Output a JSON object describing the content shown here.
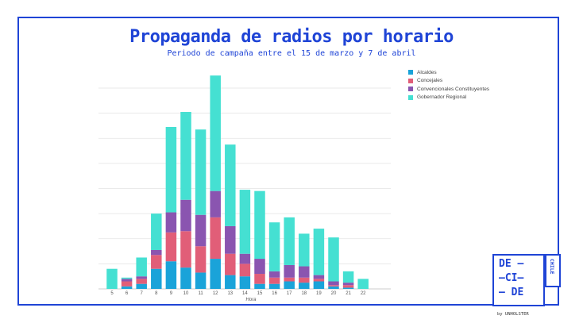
{
  "chart_data": {
    "type": "bar",
    "stacked": true,
    "title": "Propaganda de radios por horario",
    "subtitle": "Periodo de campaña entre el 15 de marzo y 7 de abril",
    "xlabel": "Hora",
    "ylabel": "",
    "ylim": [
      0,
      8.6
    ],
    "grid": true,
    "legend_position": "top-right",
    "categories": [
      "5",
      "6",
      "7",
      "8",
      "9",
      "10",
      "11",
      "12",
      "13",
      "14",
      "15",
      "16",
      "17",
      "18",
      "19",
      "20",
      "21",
      "22"
    ],
    "series": [
      {
        "name": "Alcaldes",
        "color": "#1aa3d9",
        "values": [
          0,
          0.1,
          0.2,
          0.8,
          1.1,
          0.85,
          0.65,
          1.2,
          0.55,
          0.5,
          0.2,
          0.2,
          0.3,
          0.25,
          0.3,
          0.1,
          0.05,
          0
        ]
      },
      {
        "name": "Concejales",
        "color": "#e15e78",
        "values": [
          0,
          0.2,
          0.2,
          0.55,
          1.15,
          1.45,
          1.05,
          1.65,
          0.85,
          0.5,
          0.4,
          0.25,
          0.15,
          0.2,
          0.1,
          0.05,
          0.1,
          0
        ]
      },
      {
        "name": "Convencionales Constituyentes",
        "color": "#8a55b0",
        "values": [
          0,
          0.1,
          0.1,
          0.2,
          0.8,
          1.25,
          1.25,
          1.05,
          1.1,
          0.4,
          0.6,
          0.25,
          0.5,
          0.45,
          0.15,
          0.15,
          0.1,
          0
        ]
      },
      {
        "name": "Gobernador Regional",
        "color": "#45e0d2",
        "values": [
          0.8,
          0.05,
          0.75,
          1.45,
          3.4,
          3.5,
          3.4,
          4.6,
          3.25,
          2.55,
          2.7,
          1.95,
          1.9,
          1.3,
          1.85,
          1.75,
          0.45,
          0.4
        ]
      }
    ]
  },
  "logo": {
    "row1": "DE —",
    "row2": "—CI—",
    "row3": "— DE",
    "side": "CHILE",
    "byline": "by UNHOLSTER"
  }
}
